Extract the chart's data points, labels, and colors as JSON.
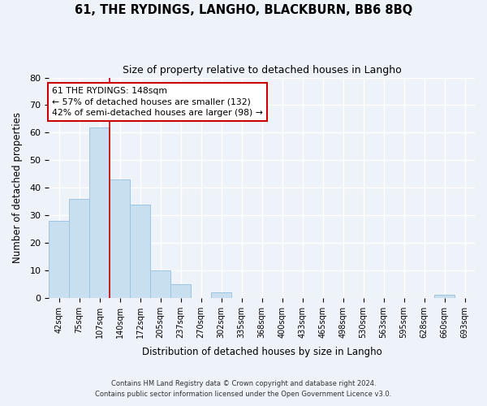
{
  "title": "61, THE RYDINGS, LANGHO, BLACKBURN, BB6 8BQ",
  "subtitle": "Size of property relative to detached houses in Langho",
  "xlabel": "Distribution of detached houses by size in Langho",
  "ylabel": "Number of detached properties",
  "bar_labels": [
    "42sqm",
    "75sqm",
    "107sqm",
    "140sqm",
    "172sqm",
    "205sqm",
    "237sqm",
    "270sqm",
    "302sqm",
    "335sqm",
    "368sqm",
    "400sqm",
    "433sqm",
    "465sqm",
    "498sqm",
    "530sqm",
    "563sqm",
    "595sqm",
    "628sqm",
    "660sqm",
    "693sqm"
  ],
  "bar_values": [
    28,
    36,
    62,
    43,
    34,
    10,
    5,
    0,
    2,
    0,
    0,
    0,
    0,
    0,
    0,
    0,
    0,
    0,
    0,
    1,
    0
  ],
  "bar_color": "#c8dff0",
  "bar_edge_color": "#a0c4e0",
  "vline_x": 3.0,
  "vline_color": "#cc0000",
  "annotation_text": "61 THE RYDINGS: 148sqm\n← 57% of detached houses are smaller (132)\n42% of semi-detached houses are larger (98) →",
  "annotation_box_color": "#ffffff",
  "annotation_box_edge": "#cc0000",
  "ylim": [
    0,
    80
  ],
  "yticks": [
    0,
    10,
    20,
    30,
    40,
    50,
    60,
    70,
    80
  ],
  "background_color": "#eef3fa",
  "grid_color": "#ffffff",
  "footer_line1": "Contains HM Land Registry data © Crown copyright and database right 2024.",
  "footer_line2": "Contains public sector information licensed under the Open Government Licence v3.0."
}
